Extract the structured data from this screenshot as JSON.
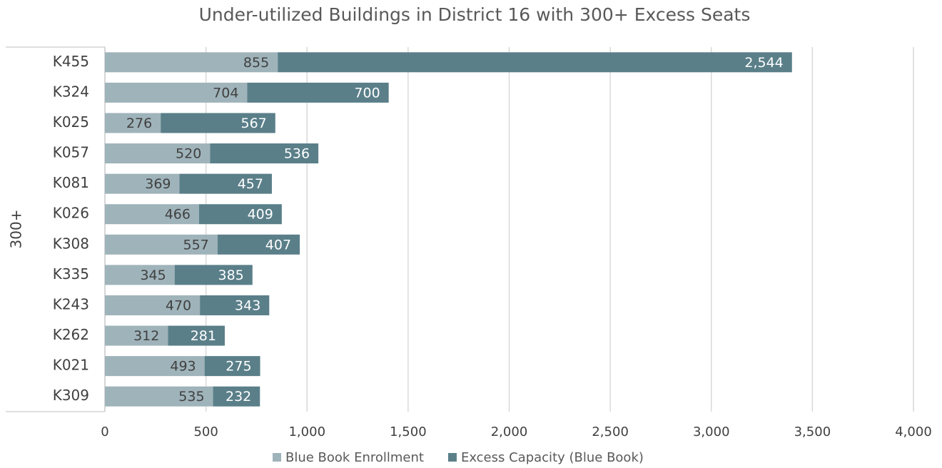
{
  "chart_data": {
    "type": "stacked-bar-horizontal",
    "title": "Under-utilized Buildings in District 16 with 300+ Excess Seats",
    "group_label": "300+",
    "categories": [
      "K455",
      "K324",
      "K025",
      "K057",
      "K081",
      "K026",
      "K308",
      "K335",
      "K243",
      "K262",
      "K021",
      "K309"
    ],
    "series": [
      {
        "name": "Blue Book Enrollment",
        "color": "#9fb3ba",
        "values": [
          855,
          704,
          276,
          520,
          369,
          466,
          557,
          345,
          470,
          312,
          493,
          535
        ]
      },
      {
        "name": "Excess Capacity (Blue Book)",
        "color": "#5a7f89",
        "values": [
          2544,
          700,
          567,
          536,
          457,
          409,
          407,
          385,
          343,
          281,
          275,
          232
        ],
        "value_labels": [
          "2,544",
          "700",
          "567",
          "536",
          "457",
          "409",
          "407",
          "385",
          "343",
          "281",
          "275",
          "232"
        ]
      }
    ],
    "xlim": [
      0,
      4000
    ],
    "xticks": [
      0,
      500,
      {
        "value": 1000,
        "label": "1,000"
      },
      {
        "value": 1500,
        "label": "1,500"
      },
      {
        "value": 2000,
        "label": "2,000"
      },
      {
        "value": 2500,
        "label": "2,500"
      },
      {
        "value": 3000,
        "label": "3,000"
      },
      {
        "value": 3500,
        "label": "3,500"
      },
      {
        "value": 4000,
        "label": "4,000"
      }
    ],
    "grid": true,
    "legend": "bottom"
  }
}
